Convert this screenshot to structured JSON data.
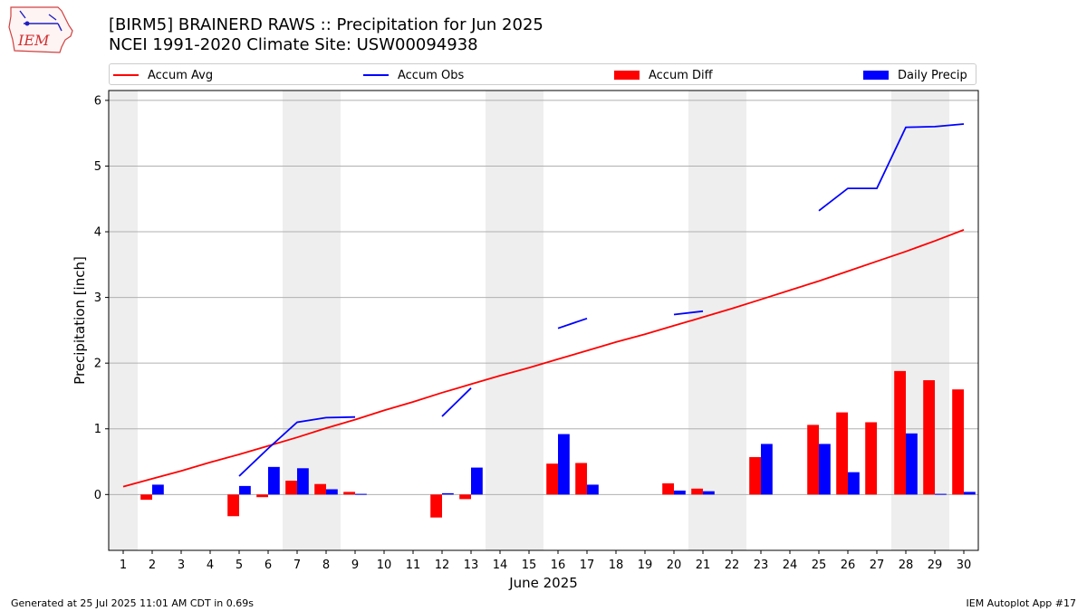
{
  "title": "[BIRM5] BRAINERD RAWS :: Precipitation for Jun 2025",
  "subtitle": "NCEI 1991-2020 Climate Site: USW00094938",
  "logo_text": "IEM",
  "footer_left": "Generated at 25 Jul 2025 11:01 AM CDT in 0.69s",
  "footer_right": "IEM Autoplot App #17",
  "colors": {
    "avg": "#ff0000",
    "obs": "#0000ff",
    "diff": "#ff0000",
    "daily": "#0000ff",
    "weekend": "#eeeeee",
    "grid": "#b0b0b0"
  },
  "chart_data": {
    "type": "bar",
    "xlabel": "June 2025",
    "ylabel": "Precipitation [inch]",
    "ylim": [
      -0.85,
      6.15
    ],
    "yticks": [
      0,
      1,
      2,
      3,
      4,
      5,
      6
    ],
    "grid": "horizontal",
    "legend": "top",
    "x": [
      1,
      2,
      3,
      4,
      5,
      6,
      7,
      8,
      9,
      10,
      11,
      12,
      13,
      14,
      15,
      16,
      17,
      18,
      19,
      20,
      21,
      22,
      23,
      24,
      25,
      26,
      27,
      28,
      29,
      30
    ],
    "weekend_days": [
      1,
      7,
      8,
      14,
      15,
      21,
      22,
      28,
      29
    ],
    "series": [
      {
        "name": "Accum Avg",
        "kind": "line",
        "values": [
          0.12,
          0.24,
          0.36,
          0.49,
          0.61,
          0.74,
          0.87,
          1.01,
          1.14,
          1.28,
          1.41,
          1.55,
          1.68,
          1.81,
          1.93,
          2.06,
          2.19,
          2.32,
          2.44,
          2.57,
          2.7,
          2.83,
          2.97,
          3.11,
          3.25,
          3.4,
          3.55,
          3.7,
          3.86,
          4.03
        ]
      },
      {
        "name": "Accum Obs",
        "kind": "line",
        "values": [
          null,
          null,
          null,
          null,
          0.28,
          0.7,
          1.1,
          1.17,
          1.18,
          null,
          null,
          1.19,
          1.62,
          null,
          null,
          2.53,
          2.68,
          null,
          null,
          2.74,
          2.79,
          null,
          null,
          null,
          4.32,
          4.66,
          4.66,
          5.59,
          5.6,
          5.64
        ]
      },
      {
        "name": "Accum Diff",
        "kind": "bar",
        "values": [
          null,
          -0.08,
          null,
          null,
          -0.33,
          -0.04,
          0.21,
          0.16,
          0.04,
          null,
          null,
          -0.35,
          -0.07,
          null,
          null,
          0.47,
          0.48,
          null,
          null,
          0.17,
          0.09,
          null,
          0.57,
          null,
          1.06,
          1.25,
          1.1,
          1.88,
          1.74,
          1.6
        ]
      },
      {
        "name": "Daily Precip",
        "kind": "bar",
        "values": [
          0,
          0.15,
          0,
          0,
          0.13,
          0.42,
          0.4,
          0.08,
          0.01,
          0,
          0,
          0.02,
          0.41,
          0,
          0,
          0.92,
          0.15,
          0,
          0,
          0.06,
          0.05,
          0,
          0.77,
          0,
          0.77,
          0.34,
          0,
          0.93,
          0.01,
          0.04
        ]
      }
    ]
  }
}
